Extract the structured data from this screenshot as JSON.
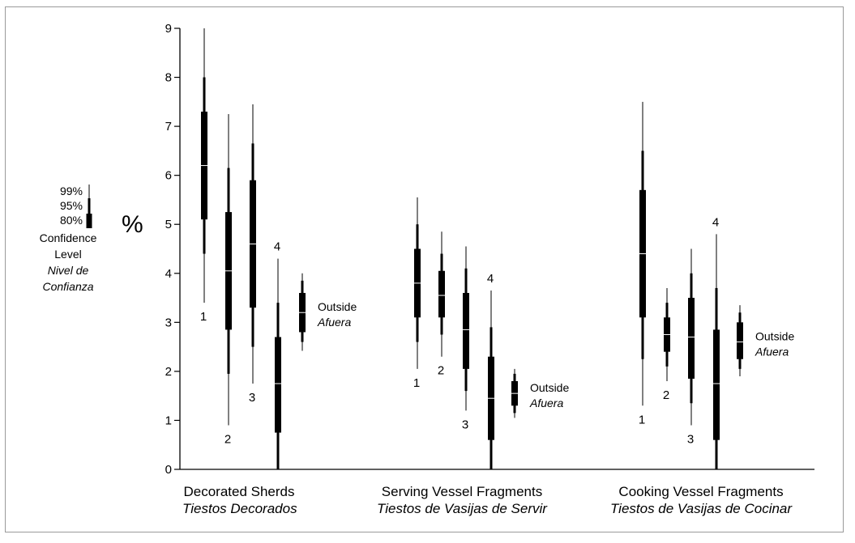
{
  "chart_data": {
    "type": "box",
    "ylabel": "%",
    "ylim": [
      0,
      9
    ],
    "yticks": [
      0,
      1,
      2,
      3,
      4,
      5,
      6,
      7,
      8,
      9
    ],
    "legend": {
      "levels": [
        "99%",
        "95%",
        "80%"
      ],
      "title": "Confidence",
      "title2": "Level",
      "title_es": "Nivel de",
      "title_es2": "Confianza"
    },
    "groups": [
      {
        "name": "Decorated Sherds",
        "name_es": "Tiestos Decorados",
        "items": [
          {
            "label": "1",
            "median": 6.2,
            "c80": [
              5.1,
              7.3
            ],
            "c95": [
              4.4,
              8.0
            ],
            "c99": [
              3.4,
              9.0
            ]
          },
          {
            "label": "2",
            "median": 4.05,
            "c80": [
              2.85,
              5.25
            ],
            "c95": [
              1.95,
              6.15
            ],
            "c99": [
              0.9,
              7.25
            ]
          },
          {
            "label": "3",
            "median": 4.6,
            "c80": [
              3.3,
              5.9
            ],
            "c95": [
              2.5,
              6.65
            ],
            "c99": [
              1.75,
              7.45
            ]
          },
          {
            "label": "4",
            "median": 1.75,
            "c80": [
              0.75,
              2.7
            ],
            "c95": [
              0.0,
              3.4
            ],
            "c99": [
              0.0,
              4.3
            ]
          },
          {
            "label": "Outside",
            "label_es": "Afuera",
            "median": 3.2,
            "c80": [
              2.8,
              3.6
            ],
            "c95": [
              2.6,
              3.85
            ],
            "c99": [
              2.42,
              4.0
            ]
          }
        ]
      },
      {
        "name": "Serving Vessel Fragments",
        "name_es": "Tiestos de Vasijas de Servir",
        "items": [
          {
            "label": "1",
            "median": 3.8,
            "c80": [
              3.1,
              4.5
            ],
            "c95": [
              2.6,
              5.0
            ],
            "c99": [
              2.05,
              5.55
            ]
          },
          {
            "label": "2",
            "median": 3.55,
            "c80": [
              3.1,
              4.05
            ],
            "c95": [
              2.75,
              4.4
            ],
            "c99": [
              2.3,
              4.85
            ]
          },
          {
            "label": "3",
            "median": 2.85,
            "c80": [
              2.05,
              3.6
            ],
            "c95": [
              1.6,
              4.1
            ],
            "c99": [
              1.2,
              4.55
            ]
          },
          {
            "label": "4",
            "median": 1.45,
            "c80": [
              0.6,
              2.3
            ],
            "c95": [
              0.0,
              2.9
            ],
            "c99": [
              0.0,
              3.65
            ]
          },
          {
            "label": "Outside",
            "label_es": "Afuera",
            "median": 1.55,
            "c80": [
              1.3,
              1.8
            ],
            "c95": [
              1.15,
              1.95
            ],
            "c99": [
              1.05,
              2.05
            ]
          }
        ]
      },
      {
        "name": "Cooking Vessel Fragments",
        "name_es": "Tiestos de Vasijas de Cocinar",
        "items": [
          {
            "label": "1",
            "median": 4.4,
            "c80": [
              3.1,
              5.7
            ],
            "c95": [
              2.25,
              6.5
            ],
            "c99": [
              1.3,
              7.5
            ]
          },
          {
            "label": "2",
            "median": 2.75,
            "c80": [
              2.4,
              3.1
            ],
            "c95": [
              2.1,
              3.4
            ],
            "c99": [
              1.8,
              3.7
            ]
          },
          {
            "label": "3",
            "median": 2.7,
            "c80": [
              1.85,
              3.5
            ],
            "c95": [
              1.35,
              4.0
            ],
            "c99": [
              0.9,
              4.5
            ]
          },
          {
            "label": "4",
            "median": 1.75,
            "c80": [
              0.6,
              2.85
            ],
            "c95": [
              0.0,
              3.7
            ],
            "c99": [
              0.0,
              4.8
            ]
          },
          {
            "label": "Outside",
            "label_es": "Afuera",
            "median": 2.6,
            "c80": [
              2.25,
              3.0
            ],
            "c95": [
              2.05,
              3.2
            ],
            "c99": [
              1.9,
              3.35
            ]
          }
        ]
      }
    ]
  }
}
